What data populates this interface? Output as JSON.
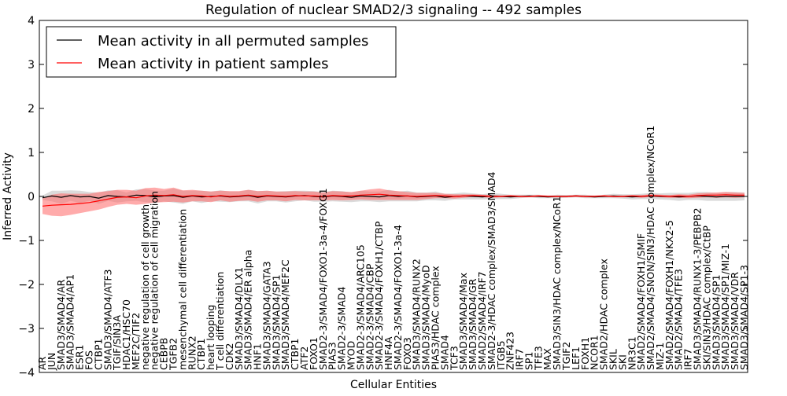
{
  "chart_data": {
    "type": "line",
    "title": "Regulation of nuclear SMAD2/3 signaling -- 492 samples",
    "xlabel": "Cellular Entities",
    "ylabel": "Inferred Activity",
    "ylim": [
      -4,
      4
    ],
    "yticks": [
      "4",
      "3",
      "2",
      "1",
      "0",
      "−1",
      "−2",
      "−3",
      "−4"
    ],
    "legend": {
      "position": "top-left",
      "entries": [
        {
          "label": "Mean activity in all permuted samples",
          "color": "#000000"
        },
        {
          "label": "Mean activity in patient samples",
          "color": "#ff0000"
        }
      ]
    },
    "x_labels": [
      "AR",
      "JUN",
      "SMAD3/SMAD4/AR",
      "SMAD3/SMAD4/AP1",
      "ESR1",
      "FOS",
      "CTBP1",
      "SMAD3/SMAD4/ATF3",
      "TGIF/SIN3A",
      "HDAC1/HSC70",
      "MEF2C/TIF2",
      "negative regulation of cell growth",
      "negative regulation of cell migration",
      "CEBPB",
      "TGFB2",
      "mesenchymal cell differentiation",
      "RUNX2",
      "CTBP1",
      "heart looping",
      "T cell differentiation",
      "CDK2",
      "SMAD3/SMAD4/DLX1",
      "SMAD3/SMAD4/ER alpha",
      "HNF1",
      "SMAD3/SMAD4/GATA3",
      "SMAD3/SMAD4/SP1",
      "SMAD3/SMAD4/MEF2C",
      "CTBP1",
      "ATF2",
      "FOXO1",
      "SMAD2-3/SMAD4/FOXO1-3a-4/FOXG1",
      "PIAS3",
      "SMAD2-3/SMAD4",
      "MYOD",
      "SMAD2-3/SMAD4/ARC105",
      "SMAD2-3/SMAD4/CBP",
      "SMAD2-3/SMAD4/FOXH1/CTBP",
      "HNF4A",
      "SMAD2-3/SMAD4/FOXO1-3a-4",
      "FOXO3",
      "SMAD3/SMAD4/RUNX2",
      "SMAD3/SMAD4/MyoD",
      "PIAS3/HDAC complex",
      "SMAD4",
      "TCF3",
      "SMAD3/SMAD4/Max",
      "SMAD3/SMAD4/GR",
      "SMAD2/SMAD4/IRF7",
      "SMAD2-3/HDAC complex/SMAD3/SMAD4",
      "ITGB5",
      "ZNF423",
      "IRF7",
      "SP1",
      "TFE3",
      "MAX",
      "SMAD3/SIN3/HDAC complex/NCoR1",
      "TGIF2",
      "LEF1",
      "FOXH1",
      "NCOR1",
      "SMAD2/HDAC complex",
      "SKIL",
      "SKI",
      "NR3C1",
      "SMAD2/SMAD4/FOXH1/SMIF",
      "SMAD2/SMAD4/SNON/SIN3/HDAC complex/NCoR1",
      "MIZ-1",
      "SMAD2/SMAD4/FOXH1/NKX2-5",
      "SMAD2/SMAD4/TFE3",
      "IRF7",
      "SMAD3/SMAD4/RUNX1-3/PEBPB2",
      "SKI/SIN3/HDAC complex/CtBP",
      "SMAD3/SMAD4/SP1",
      "SMAD3/SMAD4/SP1/MIZ-1",
      "SMAD3/SMAD4/VDR",
      "SMAD3/SMAD4/SP1-3"
    ],
    "series": [
      {
        "name": "Mean activity in all permuted samples",
        "color": "#000000",
        "values": [
          -0.03,
          0.01,
          -0.02,
          0.02,
          -0.01,
          0.0,
          -0.04,
          0.02,
          0.0,
          -0.01,
          0.03,
          0.02,
          -0.01,
          0.01,
          0.02,
          -0.02,
          0.01,
          -0.01,
          0.0,
          0.01,
          -0.01,
          0.0,
          0.02,
          -0.02,
          0.01,
          0.0,
          -0.01,
          0.01,
          0.02,
          0.0,
          -0.01,
          0.01,
          0.0,
          -0.02,
          0.01,
          0.0,
          -0.01,
          0.02,
          0.0,
          0.01,
          -0.01,
          0.0,
          0.01,
          -0.02,
          0.0,
          0.01,
          0.0,
          -0.01,
          0.01,
          0.0,
          -0.01,
          0.0,
          0.01,
          0.0,
          -0.01,
          0.0,
          0.0,
          0.01,
          0.0,
          -0.01,
          0.0,
          0.01,
          0.0,
          -0.01,
          0.0,
          0.01,
          0.0,
          0.0,
          -0.01,
          0.0,
          0.01,
          0.0,
          -0.01,
          0.0,
          0.0,
          0.0
        ]
      },
      {
        "name": "Mean activity in patient samples",
        "color": "#ff0000",
        "values": [
          -0.22,
          -0.2,
          -0.19,
          -0.18,
          -0.16,
          -0.14,
          -0.1,
          -0.06,
          -0.02,
          -0.01,
          -0.03,
          0.01,
          0.03,
          0.02,
          0.04,
          0.0,
          0.02,
          0.01,
          -0.01,
          0.02,
          0.0,
          0.01,
          0.03,
          0.0,
          0.02,
          0.01,
          0.0,
          0.02,
          0.01,
          0.01,
          0.0,
          0.02,
          0.01,
          0.01,
          0.03,
          0.04,
          0.05,
          0.03,
          0.02,
          0.01,
          0.0,
          0.01,
          0.02,
          0.01,
          0.0,
          0.01,
          0.02,
          0.01,
          0.0,
          0.0,
          0.01,
          0.0,
          0.0,
          0.01,
          0.0,
          0.0,
          0.0,
          0.01,
          0.0,
          0.0,
          0.01,
          0.0,
          0.0,
          0.01,
          0.0,
          0.02,
          0.01,
          0.0,
          0.01,
          0.0,
          0.02,
          0.03,
          0.03,
          0.04,
          0.03,
          0.03
        ]
      }
    ],
    "bands": [
      {
        "name": "permuted spread",
        "color": "#b0b0b0",
        "half_width": [
          0.05,
          0.12,
          0.15,
          0.12,
          0.14,
          0.1,
          0.13,
          0.12,
          0.14,
          0.1,
          0.13,
          0.15,
          0.14,
          0.12,
          0.16,
          0.15,
          0.12,
          0.14,
          0.11,
          0.13,
          0.12,
          0.11,
          0.13,
          0.14,
          0.12,
          0.11,
          0.13,
          0.12,
          0.11,
          0.12,
          0.11,
          0.12,
          0.12,
          0.11,
          0.12,
          0.11,
          0.12,
          0.13,
          0.11,
          0.12,
          0.1,
          0.09,
          0.1,
          0.08,
          0.07,
          0.08,
          0.07,
          0.06,
          0.07,
          0.06,
          0.05,
          0.04,
          0.03,
          0.04,
          0.03,
          0.04,
          0.03,
          0.03,
          0.04,
          0.03,
          0.04,
          0.05,
          0.05,
          0.06,
          0.06,
          0.07,
          0.07,
          0.08,
          0.09,
          0.08,
          0.09,
          0.1,
          0.09,
          0.1,
          0.1,
          0.09
        ]
      },
      {
        "name": "patient spread",
        "color": "#ff6666",
        "half_width": [
          0.18,
          0.24,
          0.26,
          0.24,
          0.22,
          0.2,
          0.2,
          0.18,
          0.17,
          0.16,
          0.16,
          0.18,
          0.17,
          0.15,
          0.16,
          0.14,
          0.13,
          0.12,
          0.12,
          0.11,
          0.12,
          0.11,
          0.12,
          0.12,
          0.11,
          0.1,
          0.11,
          0.1,
          0.1,
          0.1,
          0.09,
          0.1,
          0.1,
          0.09,
          0.1,
          0.12,
          0.13,
          0.11,
          0.1,
          0.09,
          0.08,
          0.07,
          0.06,
          0.05,
          0.05,
          0.04,
          0.03,
          0.03,
          0.03,
          0.02,
          0.02,
          0.02,
          0.02,
          0.02,
          0.02,
          0.02,
          0.02,
          0.02,
          0.02,
          0.02,
          0.02,
          0.02,
          0.02,
          0.02,
          0.03,
          0.03,
          0.03,
          0.03,
          0.04,
          0.04,
          0.05,
          0.05,
          0.06,
          0.06,
          0.06,
          0.05
        ]
      }
    ]
  }
}
